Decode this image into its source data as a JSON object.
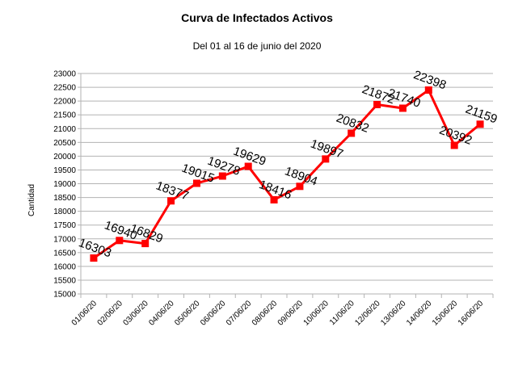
{
  "chart_data": {
    "type": "line",
    "title": "Curva de Infectados Activos",
    "subtitle": "Del 01 al 16 de junio del 2020",
    "ylabel": "Cantidad",
    "xlabel": "",
    "ylim": [
      15000,
      23000
    ],
    "yticks": [
      15000,
      15500,
      16000,
      16500,
      17000,
      17500,
      18000,
      18500,
      19000,
      19500,
      20000,
      20500,
      21000,
      21500,
      22000,
      22500,
      23000
    ],
    "grid": true,
    "legend": "none",
    "categories": [
      "01/06/20",
      "02/06/20",
      "03/06/20",
      "04/06/20",
      "05/06/20",
      "06/06/20",
      "07/06/20",
      "08/06/20",
      "09/06/20",
      "10/06/20",
      "11/06/20",
      "12/06/20",
      "13/06/20",
      "14/06/20",
      "15/06/20",
      "16/06/20"
    ],
    "series": [
      {
        "values": [
          16303,
          16940,
          16829,
          18377,
          19015,
          19278,
          19629,
          18416,
          18904,
          19897,
          20832,
          21872,
          21740,
          22398,
          20392,
          21159
        ],
        "color": "#ff0000"
      }
    ]
  }
}
